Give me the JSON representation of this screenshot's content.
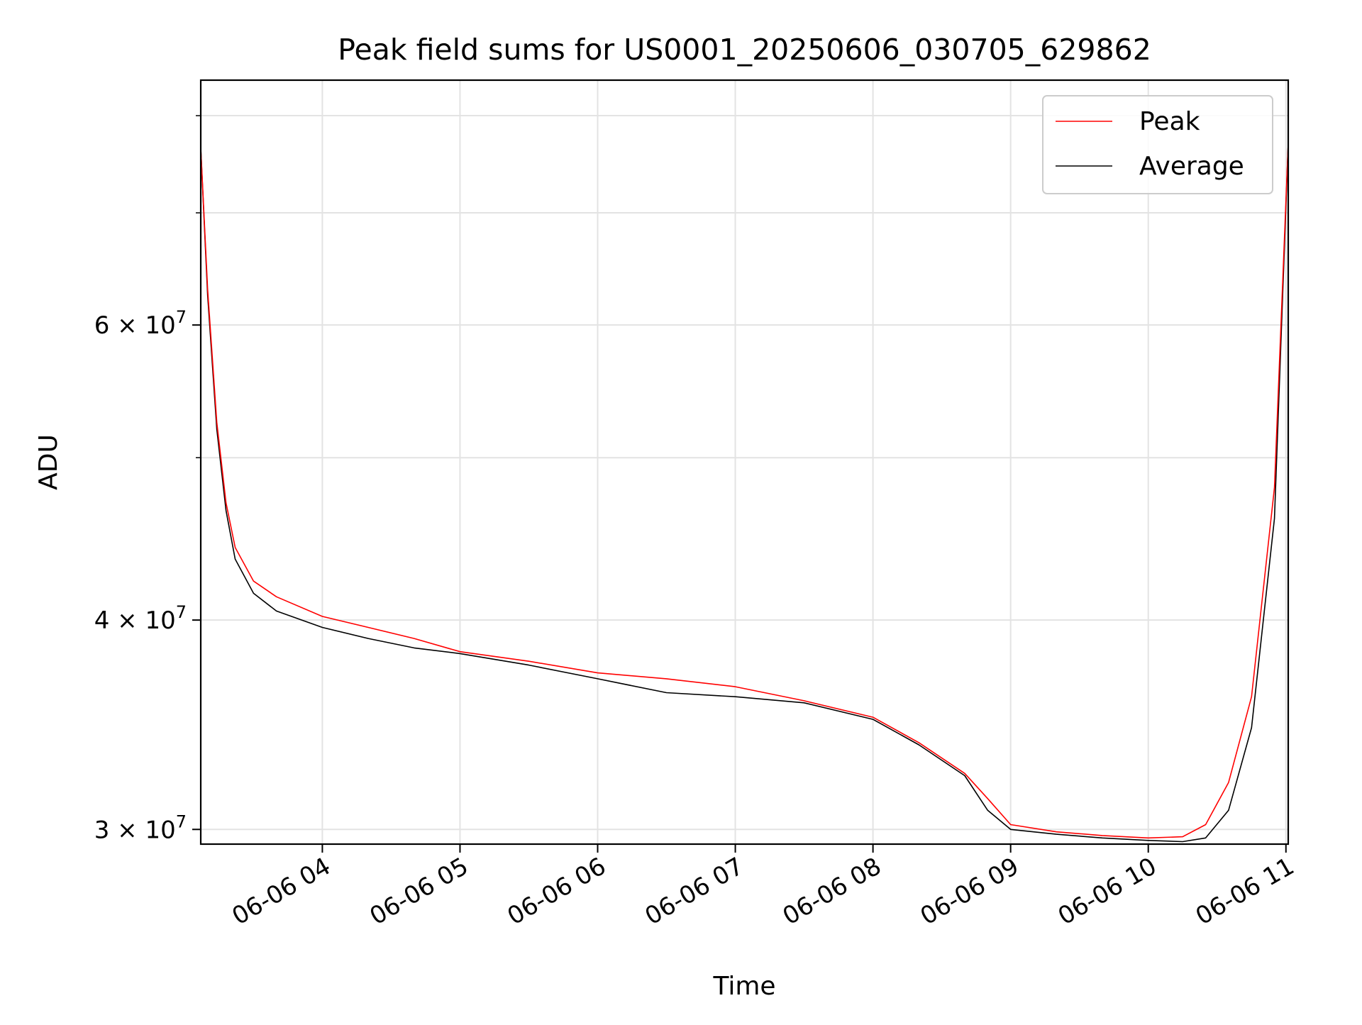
{
  "chart_data": {
    "type": "line",
    "title": "Peak field sums for US0001_20250606_030705_629862",
    "xlabel": "Time",
    "ylabel": "ADU",
    "x_range": [
      "06-06 03:07",
      "06-06 11:01"
    ],
    "ylim": [
      29400000,
      84000000
    ],
    "y_scale": "log",
    "grid": true,
    "legend_position": "top-right",
    "x_ticks": [
      "06-06 04",
      "06-06 05",
      "06-06 06",
      "06-06 07",
      "06-06 08",
      "06-06 09",
      "06-06 10",
      "06-06 11"
    ],
    "y_tick_labels": [
      {
        "value": 30000000,
        "mantissa": "3",
        "exponent": "7"
      },
      {
        "value": 40000000,
        "mantissa": "4",
        "exponent": "7"
      },
      {
        "value": 60000000,
        "mantissa": "6",
        "exponent": "7"
      }
    ],
    "y_minor_ticks": [
      50000000,
      70000000,
      80000000
    ],
    "series": [
      {
        "name": "Peak",
        "color": "#ff0000",
        "x": [
          "06-06 03:07",
          "06-06 03:10",
          "06-06 03:14",
          "06-06 03:18",
          "06-06 03:22",
          "06-06 03:30",
          "06-06 03:40",
          "06-06 04:00",
          "06-06 04:20",
          "06-06 04:40",
          "06-06 05:00",
          "06-06 05:30",
          "06-06 06:00",
          "06-06 06:30",
          "06-06 07:00",
          "06-06 07:30",
          "06-06 08:00",
          "06-06 08:20",
          "06-06 08:40",
          "06-06 08:50",
          "06-06 09:00",
          "06-06 09:20",
          "06-06 09:40",
          "06-06 10:00",
          "06-06 10:15",
          "06-06 10:25",
          "06-06 10:35",
          "06-06 10:45",
          "06-06 10:55",
          "06-06 11:01"
        ],
        "values": [
          76500000,
          63000000,
          52500000,
          47000000,
          44200000,
          42200000,
          41300000,
          40200000,
          39600000,
          39000000,
          38300000,
          37800000,
          37200000,
          36900000,
          36500000,
          35800000,
          35000000,
          33800000,
          32400000,
          31300000,
          30200000,
          29900000,
          29750000,
          29650000,
          29700000,
          30200000,
          32000000,
          36000000,
          48000000,
          77000000
        ]
      },
      {
        "name": "Average",
        "color": "#000000",
        "x": [
          "06-06 03:07",
          "06-06 03:10",
          "06-06 03:14",
          "06-06 03:18",
          "06-06 03:22",
          "06-06 03:30",
          "06-06 03:40",
          "06-06 04:00",
          "06-06 04:20",
          "06-06 04:40",
          "06-06 05:00",
          "06-06 05:30",
          "06-06 06:00",
          "06-06 06:30",
          "06-06 07:00",
          "06-06 07:30",
          "06-06 08:00",
          "06-06 08:20",
          "06-06 08:40",
          "06-06 08:50",
          "06-06 09:00",
          "06-06 09:20",
          "06-06 09:40",
          "06-06 10:00",
          "06-06 10:15",
          "06-06 10:25",
          "06-06 10:35",
          "06-06 10:45",
          "06-06 10:55",
          "06-06 11:01"
        ],
        "values": [
          76500000,
          62500000,
          52000000,
          46500000,
          43500000,
          41500000,
          40500000,
          39600000,
          39000000,
          38500000,
          38200000,
          37600000,
          36900000,
          36200000,
          36000000,
          35700000,
          34900000,
          33700000,
          32300000,
          30800000,
          30000000,
          29800000,
          29650000,
          29550000,
          29500000,
          29650000,
          30800000,
          34500000,
          46000000,
          77000000
        ]
      }
    ]
  }
}
